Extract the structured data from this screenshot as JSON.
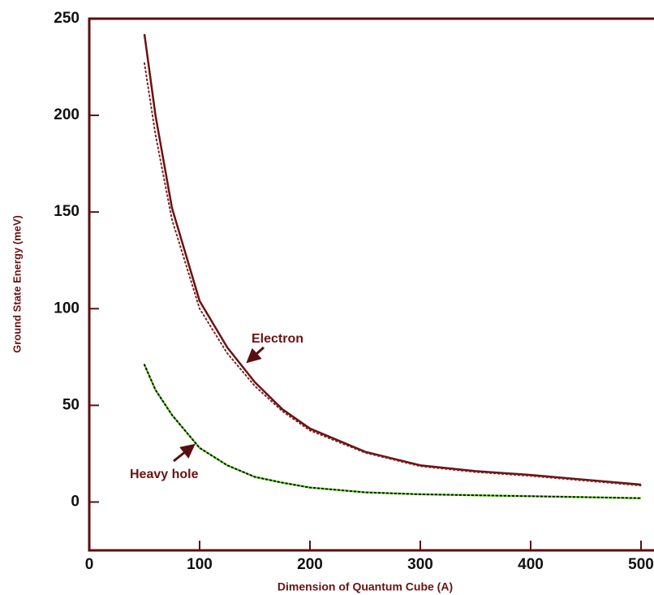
{
  "chart_data": {
    "type": "line",
    "xlabel": "Dimension of Quantum Cube (A)",
    "ylabel": "Ground State Energy (meV)",
    "annotations": [
      "Electron",
      "Heavy hole"
    ],
    "x": [
      50,
      60,
      75,
      100,
      125,
      150,
      175,
      200,
      250,
      300,
      350,
      400,
      450,
      500
    ],
    "series": [
      {
        "color": "#6b1212",
        "dash": "solid",
        "values": [
          242,
          200,
          152,
          104,
          80,
          62,
          48,
          38,
          26,
          19,
          16,
          14,
          11.5,
          9
        ]
      },
      {
        "color": "#7a2222",
        "dash": "dotted",
        "values": [
          227,
          190,
          146,
          100,
          77,
          60,
          47,
          37,
          25.5,
          18.5,
          15.5,
          13.5,
          11,
          8.5
        ]
      },
      {
        "color": "#66dd22",
        "dash": "solid",
        "values": [
          71,
          58,
          45,
          28,
          19,
          13,
          10,
          7.5,
          5,
          4,
          3.5,
          3,
          2.5,
          2
        ]
      },
      {
        "color": "#111111",
        "dash": "dotted",
        "values": [
          71,
          58,
          45,
          28,
          19,
          13,
          10,
          7.5,
          5,
          4,
          3.5,
          3,
          2.5,
          2
        ]
      }
    ],
    "xlim": [
      0,
      500
    ],
    "ylim": [
      -25,
      250
    ],
    "xticks": [
      0,
      100,
      200,
      300,
      400,
      500
    ],
    "yticks": [
      0,
      50,
      100,
      150,
      200,
      250
    ]
  }
}
